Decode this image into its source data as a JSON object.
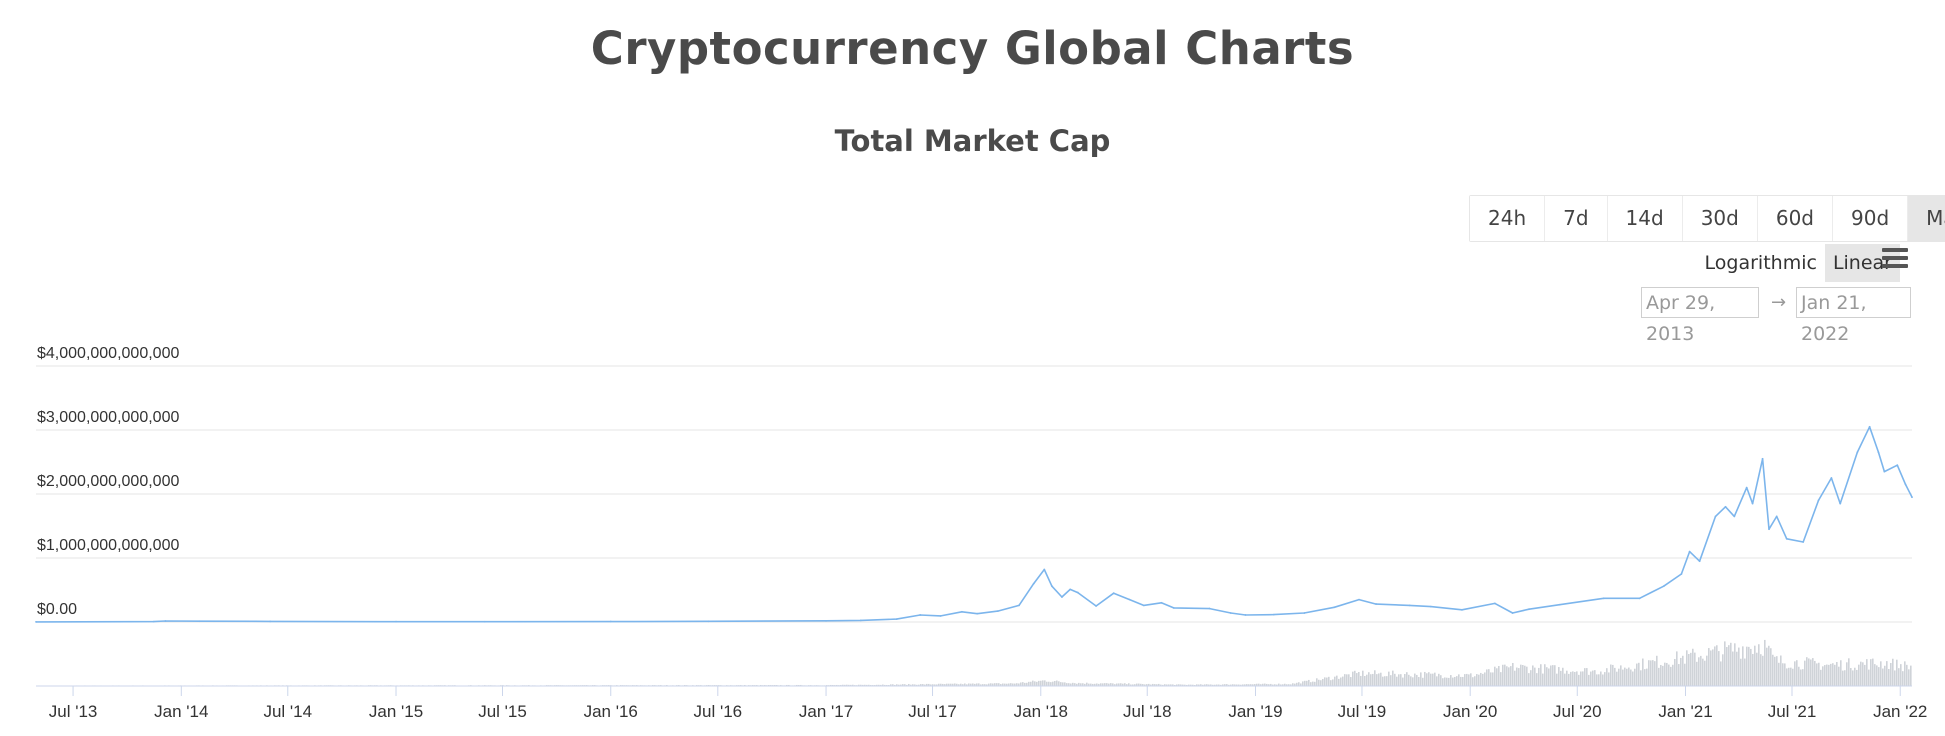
{
  "page": {
    "title": "Cryptocurrency Global Charts",
    "chart_title": "Total Market Cap"
  },
  "range_buttons": [
    {
      "label": "24h",
      "active": false
    },
    {
      "label": "7d",
      "active": false
    },
    {
      "label": "14d",
      "active": false
    },
    {
      "label": "30d",
      "active": false
    },
    {
      "label": "60d",
      "active": false
    },
    {
      "label": "90d",
      "active": false
    },
    {
      "label": "Max",
      "active": true
    }
  ],
  "scale": {
    "logarithmic_label": "Logarithmic",
    "linear_label": "Linear",
    "selected": "Linear"
  },
  "date_range": {
    "from": "Apr 29, 2013",
    "arrow": "→",
    "to": "Jan 21, 2022"
  },
  "colors": {
    "line": "#7cb5ec",
    "volume": "#cfd3d8",
    "grid": "#e6e6e6",
    "active_button": "#e6e6e6"
  },
  "chart_data": {
    "type": "line",
    "title": "Total Market Cap",
    "y_ticks": [
      "$0.00",
      "$1,000,000,000,000",
      "$2,000,000,000,000",
      "$3,000,000,000,000",
      "$4,000,000,000,000"
    ],
    "y_tick_values": [
      0,
      1000000000000,
      2000000000000,
      3000000000000,
      4000000000000
    ],
    "ylim": [
      0,
      4000000000000
    ],
    "xlim": [
      "2013-04-29",
      "2022-01-21"
    ],
    "x_ticks": [
      {
        "date": "2013-07-01",
        "label": "Jul '13"
      },
      {
        "date": "2014-01-01",
        "label": "Jan '14"
      },
      {
        "date": "2014-07-01",
        "label": "Jul '14"
      },
      {
        "date": "2015-01-01",
        "label": "Jan '15"
      },
      {
        "date": "2015-07-01",
        "label": "Jul '15"
      },
      {
        "date": "2016-01-01",
        "label": "Jan '16"
      },
      {
        "date": "2016-07-01",
        "label": "Jul '16"
      },
      {
        "date": "2017-01-01",
        "label": "Jan '17"
      },
      {
        "date": "2017-07-01",
        "label": "Jul '17"
      },
      {
        "date": "2018-01-01",
        "label": "Jan '18"
      },
      {
        "date": "2018-07-01",
        "label": "Jul '18"
      },
      {
        "date": "2019-01-01",
        "label": "Jan '19"
      },
      {
        "date": "2019-07-01",
        "label": "Jul '19"
      },
      {
        "date": "2020-01-01",
        "label": "Jan '20"
      },
      {
        "date": "2020-07-01",
        "label": "Jul '20"
      },
      {
        "date": "2021-01-01",
        "label": "Jan '21"
      },
      {
        "date": "2021-07-01",
        "label": "Jul '21"
      },
      {
        "date": "2022-01-01",
        "label": "Jan '22"
      }
    ],
    "grid": true,
    "legend": "none",
    "series": [
      {
        "type": "line",
        "points": [
          [
            "2013-04-29",
            1500000000.0
          ],
          [
            "2013-11-15",
            6000000000.0
          ],
          [
            "2013-12-05",
            15000000000.0
          ],
          [
            "2014-02-01",
            12000000000.0
          ],
          [
            "2014-06-01",
            9000000000.0
          ],
          [
            "2015-01-01",
            5000000000.0
          ],
          [
            "2015-06-01",
            4000000000.0
          ],
          [
            "2016-01-01",
            7000000000.0
          ],
          [
            "2016-06-15",
            11000000000.0
          ],
          [
            "2017-01-01",
            18000000000.0
          ],
          [
            "2017-03-01",
            25000000000.0
          ],
          [
            "2017-05-01",
            45000000000.0
          ],
          [
            "2017-06-10",
            110000000000.0
          ],
          [
            "2017-07-15",
            95000000000.0
          ],
          [
            "2017-08-20",
            160000000000.0
          ],
          [
            "2017-09-15",
            130000000000.0
          ],
          [
            "2017-10-20",
            170000000000.0
          ],
          [
            "2017-11-25",
            260000000000.0
          ],
          [
            "2017-12-20",
            600000000000.0
          ],
          [
            "2018-01-07",
            820000000000.0
          ],
          [
            "2018-01-20",
            560000000000.0
          ],
          [
            "2018-02-06",
            390000000000.0
          ],
          [
            "2018-02-20",
            510000000000.0
          ],
          [
            "2018-03-05",
            460000000000.0
          ],
          [
            "2018-04-05",
            250000000000.0
          ],
          [
            "2018-05-05",
            450000000000.0
          ],
          [
            "2018-06-01",
            350000000000.0
          ],
          [
            "2018-06-25",
            260000000000.0
          ],
          [
            "2018-07-25",
            300000000000.0
          ],
          [
            "2018-08-15",
            220000000000.0
          ],
          [
            "2018-10-15",
            210000000000.0
          ],
          [
            "2018-11-20",
            140000000000.0
          ],
          [
            "2018-12-15",
            110000000000.0
          ],
          [
            "2019-02-01",
            115000000000.0
          ],
          [
            "2019-03-25",
            140000000000.0
          ],
          [
            "2019-05-15",
            230000000000.0
          ],
          [
            "2019-06-26",
            350000000000.0
          ],
          [
            "2019-07-25",
            280000000000.0
          ],
          [
            "2019-09-20",
            260000000000.0
          ],
          [
            "2019-10-26",
            240000000000.0
          ],
          [
            "2019-12-18",
            190000000000.0
          ],
          [
            "2020-02-12",
            290000000000.0
          ],
          [
            "2020-03-13",
            140000000000.0
          ],
          [
            "2020-04-10",
            200000000000.0
          ],
          [
            "2020-06-01",
            270000000000.0
          ],
          [
            "2020-08-15",
            370000000000.0
          ],
          [
            "2020-10-15",
            370000000000.0
          ],
          [
            "2020-11-25",
            560000000000.0
          ],
          [
            "2020-12-25",
            750000000000.0
          ],
          [
            "2021-01-08",
            1100000000000.0
          ],
          [
            "2021-01-25",
            950000000000.0
          ],
          [
            "2021-02-21",
            1650000000000.0
          ],
          [
            "2021-03-10",
            1800000000000.0
          ],
          [
            "2021-03-25",
            1650000000000.0
          ],
          [
            "2021-04-15",
            2100000000000.0
          ],
          [
            "2021-04-25",
            1850000000000.0
          ],
          [
            "2021-05-12",
            2550000000000.0
          ],
          [
            "2021-05-23",
            1450000000000.0
          ],
          [
            "2021-06-05",
            1650000000000.0
          ],
          [
            "2021-06-22",
            1300000000000.0
          ],
          [
            "2021-07-20",
            1250000000000.0
          ],
          [
            "2021-08-15",
            1900000000000.0
          ],
          [
            "2021-09-06",
            2250000000000.0
          ],
          [
            "2021-09-21",
            1850000000000.0
          ],
          [
            "2021-10-20",
            2650000000000.0
          ],
          [
            "2021-11-10",
            3050000000000.0
          ],
          [
            "2021-11-25",
            2650000000000.0
          ],
          [
            "2021-12-05",
            2350000000000.0
          ],
          [
            "2021-12-27",
            2450000000000.0
          ],
          [
            "2022-01-10",
            2150000000000.0
          ],
          [
            "2022-01-21",
            1950000000000.0
          ]
        ]
      },
      {
        "type": "volume_bars",
        "points": [
          [
            "2013-04-29",
            0.01
          ],
          [
            "2017-01-01",
            0.02
          ],
          [
            "2017-11-15",
            0.06
          ],
          [
            "2018-01-07",
            0.13
          ],
          [
            "2018-03-01",
            0.07
          ],
          [
            "2018-09-01",
            0.03
          ],
          [
            "2019-03-01",
            0.05
          ],
          [
            "2019-06-26",
            0.3
          ],
          [
            "2020-01-01",
            0.25
          ],
          [
            "2020-03-13",
            0.45
          ],
          [
            "2020-08-01",
            0.35
          ],
          [
            "2021-01-08",
            0.7
          ],
          [
            "2021-05-12",
            1.0
          ],
          [
            "2021-06-01",
            0.6
          ],
          [
            "2021-09-01",
            0.5
          ],
          [
            "2021-12-05",
            0.55
          ],
          [
            "2022-01-21",
            0.45
          ]
        ]
      }
    ]
  }
}
